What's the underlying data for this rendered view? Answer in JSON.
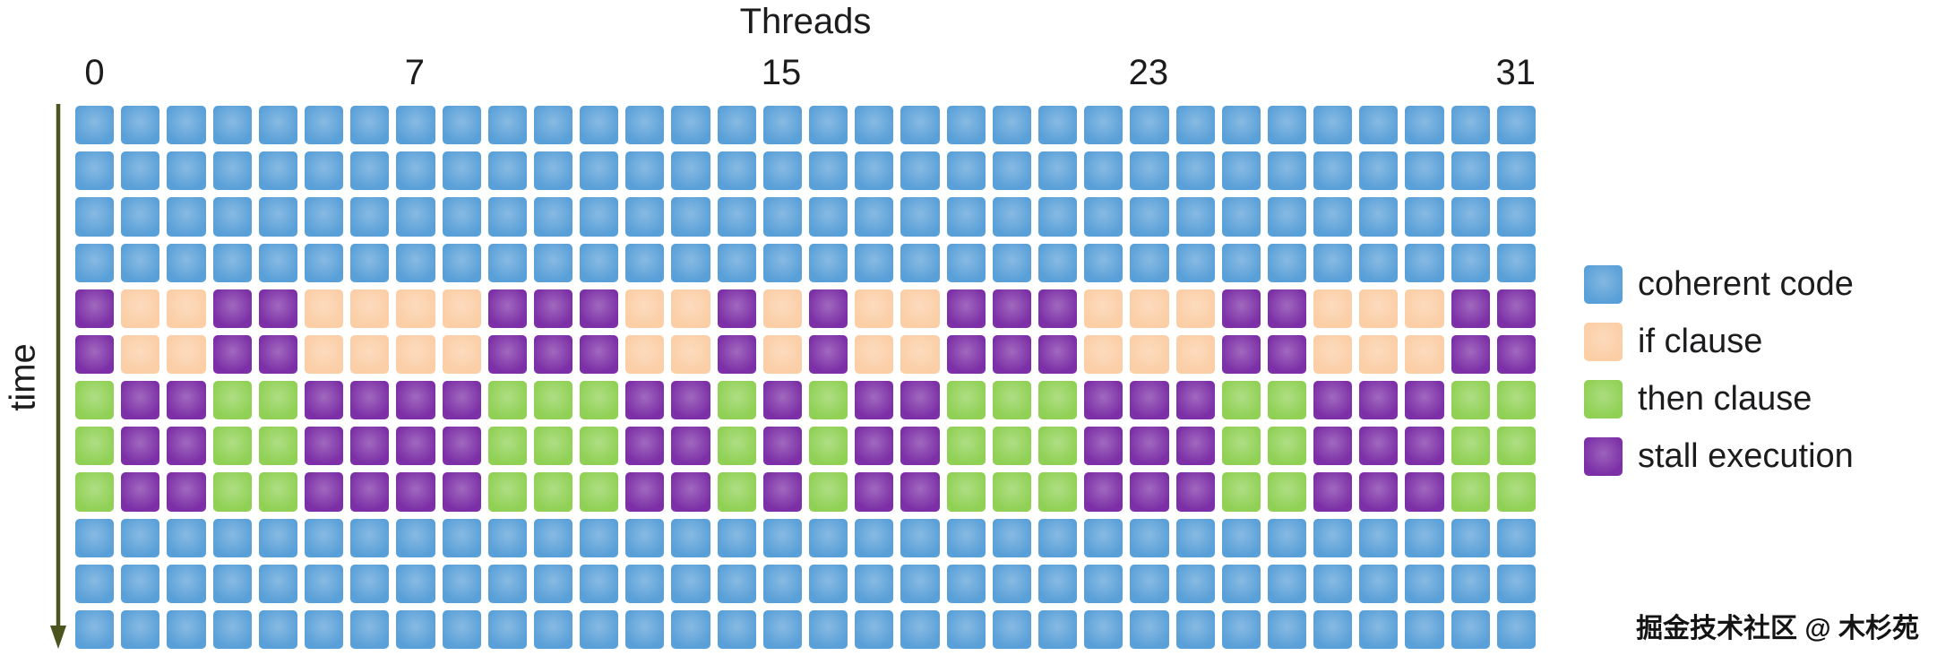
{
  "title": "Threads",
  "time_axis": {
    "label": "time",
    "arrow_color": "#4b531f"
  },
  "thread_ticks": [
    {
      "col": 0,
      "label": "0"
    },
    {
      "col": 7,
      "label": "7"
    },
    {
      "col": 15,
      "label": "15"
    },
    {
      "col": 23,
      "label": "23"
    },
    {
      "col": 31,
      "label": "31"
    }
  ],
  "legend": [
    {
      "key": "coherent",
      "label": "coherent code",
      "color": "#5aa0d8"
    },
    {
      "key": "if",
      "label": "if clause",
      "color": "#fbcea6"
    },
    {
      "key": "then",
      "label": "then clause",
      "color": "#90d155"
    },
    {
      "key": "stall",
      "label": "stall execution",
      "color": "#7c2fa6"
    }
  ],
  "watermark": "掘金技术社区 @ 木杉苑",
  "chart_data": {
    "type": "heatmap",
    "title": "Threads",
    "xlabel": "Threads",
    "ylabel": "time",
    "columns": 32,
    "rows_count": 12,
    "legend_position": "right",
    "cell_codes": {
      "B": "coherent",
      "P": "if",
      "G": "then",
      "U": "stall"
    },
    "row_bands": [
      "coherent x4",
      "if/stall x2",
      "then/stall x3",
      "coherent x3"
    ],
    "divergence_mask_if_taken": [
      0,
      1,
      1,
      0,
      0,
      1,
      1,
      1,
      1,
      0,
      0,
      0,
      1,
      1,
      0,
      1,
      0,
      1,
      1,
      0,
      0,
      0,
      1,
      1,
      1,
      0,
      0,
      1,
      1,
      1,
      0,
      0
    ],
    "rows": [
      "BBBBBBBBBBBBBBBBBBBBBBBBBBBBBBBB",
      "BBBBBBBBBBBBBBBBBBBBBBBBBBBBBBBB",
      "BBBBBBBBBBBBBBBBBBBBBBBBBBBBBBBB",
      "BBBBBBBBBBBBBBBBBBBBBBBBBBBBBBBB",
      "UPPUUPPPPUUUPPUPUPPUUUPPPUUPPPUU",
      "UPPUUPPPPUUUPPUPUPPUUUPPPUUPPPUU",
      "GUUGGUUUUGGGUUGUGUUGGGUUUGGUUUGG",
      "GUUGGUUUUGGGUUGUGUUGGGUUUGGUUUGG",
      "GUUGGUUUUGGGUUGUGUUGGGUUUGGUUUGG",
      "BBBBBBBBBBBBBBBBBBBBBBBBBBBBBBBB",
      "BBBBBBBBBBBBBBBBBBBBBBBBBBBBBBBB",
      "BBBBBBBBBBBBBBBBBBBBBBBBBBBBBBBB"
    ]
  }
}
